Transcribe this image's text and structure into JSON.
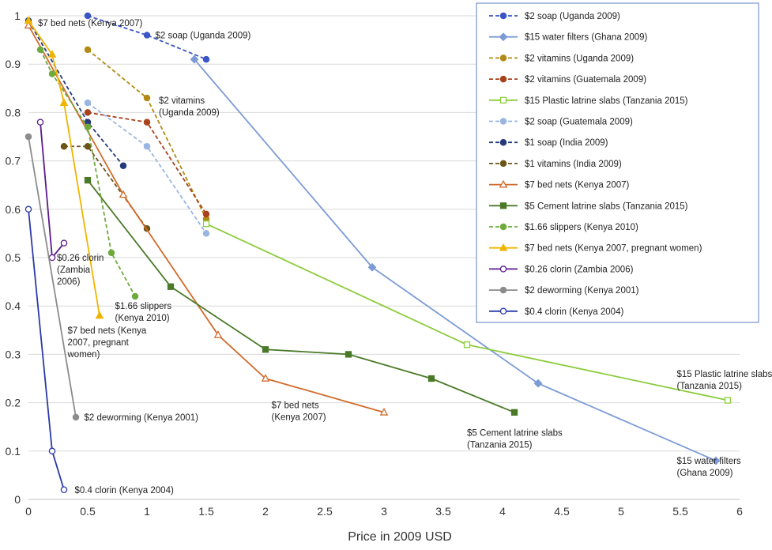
{
  "chart_data": {
    "type": "line",
    "title": "",
    "xlabel": "Price in 2009 USD",
    "ylabel": "",
    "xlim": [
      0,
      6
    ],
    "ylim": [
      0,
      1
    ],
    "x_ticks": [
      "0",
      "0.5",
      "1",
      "1.5",
      "2",
      "2.5",
      "3",
      "3.5",
      "4",
      "4.5",
      "5",
      "5.5",
      "6"
    ],
    "y_ticks": [
      "0",
      "0.1",
      "0.2",
      "0.3",
      "0.4",
      "0.5",
      "0.6",
      "0.7",
      "0.8",
      "0.9",
      "1"
    ],
    "grid": "horizontal",
    "legend_position": "top-right",
    "series": [
      {
        "name": "$2 soap (Uganda 2009)",
        "color": "#3b56c4",
        "dash": "dashed",
        "marker": "circle",
        "points": [
          [
            0.5,
            1.0
          ],
          [
            1.0,
            0.96
          ],
          [
            1.5,
            0.91
          ]
        ]
      },
      {
        "name": "$15 water filters (Ghana 2009)",
        "color": "#7c9bd6",
        "dash": "solid",
        "marker": "diamond",
        "points": [
          [
            1.4,
            0.91
          ],
          [
            2.9,
            0.48
          ],
          [
            4.3,
            0.24
          ],
          [
            5.8,
            0.08
          ]
        ]
      },
      {
        "name": "$2 vitamins (Uganda 2009)",
        "color": "#b08a14",
        "dash": "dashed",
        "marker": "circle",
        "points": [
          [
            0.5,
            0.93
          ],
          [
            1.0,
            0.83
          ],
          [
            1.5,
            0.58
          ]
        ]
      },
      {
        "name": "$2 vitamins (Guatemala 2009)",
        "color": "#a8421c",
        "dash": "dashed",
        "marker": "circle",
        "points": [
          [
            0.5,
            0.8
          ],
          [
            1.0,
            0.78
          ],
          [
            1.5,
            0.59
          ]
        ]
      },
      {
        "name": "$15 Plastic latrine slabs (Tanzania 2015)",
        "color": "#8ccc3c",
        "dash": "solid",
        "marker": "square-open",
        "points": [
          [
            1.5,
            0.57
          ],
          [
            3.7,
            0.32
          ],
          [
            5.9,
            0.205
          ]
        ]
      },
      {
        "name": "$2 soap (Guatemala 2009)",
        "color": "#9ab5e2",
        "dash": "dashed",
        "marker": "circle",
        "points": [
          [
            0.5,
            0.82
          ],
          [
            1.0,
            0.73
          ],
          [
            1.5,
            0.55
          ]
        ]
      },
      {
        "name": "$1 soap (India 2009)",
        "color": "#253a7a",
        "dash": "dashed",
        "marker": "circle",
        "points": [
          [
            0.0,
            0.99
          ],
          [
            0.5,
            0.78
          ],
          [
            0.8,
            0.69
          ]
        ]
      },
      {
        "name": "$1 vitamins (India 2009)",
        "color": "#6b5416",
        "dash": "dashed",
        "marker": "circle",
        "points": [
          [
            0.3,
            0.73
          ],
          [
            0.5,
            0.73
          ],
          [
            1.0,
            0.56
          ]
        ]
      },
      {
        "name": "$7 bed nets (Kenya 2007)",
        "color": "#d26a2a",
        "dash": "solid",
        "marker": "triangle-open",
        "points": [
          [
            0.0,
            0.98
          ],
          [
            0.8,
            0.63
          ],
          [
            1.6,
            0.34
          ],
          [
            2.0,
            0.25
          ],
          [
            3.0,
            0.18
          ]
        ]
      },
      {
        "name": "$5 Cement latrine slabs (Tanzania 2015)",
        "color": "#4a7a28",
        "dash": "solid",
        "marker": "square",
        "points": [
          [
            0.5,
            0.66
          ],
          [
            1.2,
            0.44
          ],
          [
            2.0,
            0.31
          ],
          [
            2.7,
            0.3
          ],
          [
            3.4,
            0.25
          ],
          [
            4.1,
            0.18
          ]
        ]
      },
      {
        "name": "$1.66 slippers (Kenya 2010)",
        "color": "#6eaa3c",
        "dash": "dashed",
        "marker": "circle",
        "points": [
          [
            0.1,
            0.93
          ],
          [
            0.2,
            0.88
          ],
          [
            0.5,
            0.77
          ],
          [
            0.7,
            0.51
          ],
          [
            0.9,
            0.42
          ]
        ]
      },
      {
        "name": "$7 bed nets (Kenya 2007, pregnant women)",
        "color": "#f0b400",
        "dash": "solid",
        "marker": "triangle",
        "points": [
          [
            0.0,
            0.99
          ],
          [
            0.2,
            0.92
          ],
          [
            0.3,
            0.82
          ],
          [
            0.6,
            0.38
          ]
        ]
      },
      {
        "name": "$0.26 clorin (Zambia 2006)",
        "color": "#5c1a8c",
        "dash": "solid",
        "marker": "circle-open",
        "points": [
          [
            0.1,
            0.78
          ],
          [
            0.2,
            0.5
          ],
          [
            0.3,
            0.53
          ]
        ]
      },
      {
        "name": "$2 deworming (Kenya 2001)",
        "color": "#8c8c8c",
        "dash": "solid",
        "marker": "circle",
        "points": [
          [
            0.0,
            0.75
          ],
          [
            0.4,
            0.17
          ]
        ]
      },
      {
        "name": "$0.4 clorin (Kenya 2004)",
        "color": "#2a3aa8",
        "dash": "solid",
        "marker": "circle-open",
        "points": [
          [
            0.0,
            0.6
          ],
          [
            0.2,
            0.1
          ],
          [
            0.3,
            0.02
          ]
        ]
      }
    ],
    "annotations": [
      {
        "text": [
          "$7 bed nets (Kenya 2007)"
        ],
        "x": 0.08,
        "y": 0.985
      },
      {
        "text": [
          "$2 soap (Uganda 2009)"
        ],
        "x": 1.07,
        "y": 0.96
      },
      {
        "text": [
          "$2 vitamins",
          "(Uganda 2009)"
        ],
        "x": 1.1,
        "y": 0.825
      },
      {
        "text": [
          "$0.26 clorin",
          "(Zambia",
          "2006)"
        ],
        "x": 0.24,
        "y": 0.5
      },
      {
        "text": [
          "$1.66 slippers",
          "(Kenya 2010)"
        ],
        "x": 0.73,
        "y": 0.4
      },
      {
        "text": [
          "$7 bed nets (Kenya",
          "2007, pregnant",
          "women)"
        ],
        "x": 0.33,
        "y": 0.35
      },
      {
        "text": [
          "$2 deworming (Kenya 2001)"
        ],
        "x": 0.47,
        "y": 0.17
      },
      {
        "text": [
          "$7 bed nets",
          "(Kenya 2007)"
        ],
        "x": 2.05,
        "y": 0.195
      },
      {
        "text": [
          "$5 Cement latrine slabs",
          "(Tanzania 2015)"
        ],
        "x": 3.7,
        "y": 0.138
      },
      {
        "text": [
          "$15 Plastic latrine slabs",
          "(Tanzania 2015)"
        ],
        "x": 5.47,
        "y": 0.26
      },
      {
        "text": [
          "$15 water filters",
          "(Ghana 2009)"
        ],
        "x": 5.47,
        "y": 0.08
      },
      {
        "text": [
          "$0.4 clorin (Kenya 2004)"
        ],
        "x": 0.39,
        "y": 0.02
      }
    ]
  }
}
